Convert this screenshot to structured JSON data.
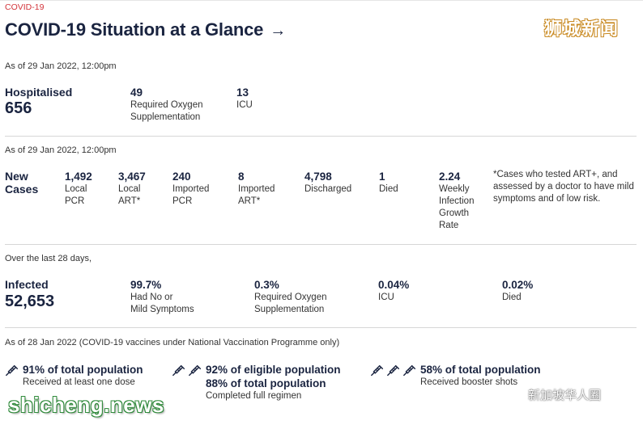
{
  "header": {
    "brand": "COVID-19",
    "title": "COVID-19 Situation at a Glance",
    "arrow": "→"
  },
  "watermarks": {
    "cn": "狮城新闻",
    "en": "shicheng.news",
    "wechat": "新加坡华人圈"
  },
  "hospital": {
    "asof": "As of 29 Jan 2022, 12:00pm",
    "label": "Hospitalised",
    "total": "656",
    "stats": [
      {
        "value": "49",
        "desc1": "Required Oxygen",
        "desc2": "Supplementation"
      },
      {
        "value": "13",
        "desc1": "ICU",
        "desc2": ""
      }
    ]
  },
  "cases": {
    "asof": "As of 29 Jan 2022, 12:00pm",
    "label1": "New",
    "label2": "Cases",
    "stats": [
      {
        "value": "1,492",
        "desc": [
          "Local",
          "PCR"
        ]
      },
      {
        "value": "3,467",
        "desc": [
          "Local",
          "ART*"
        ]
      },
      {
        "value": "240",
        "desc": [
          "Imported",
          "PCR"
        ]
      },
      {
        "value": "8",
        "desc": [
          "Imported",
          "ART*"
        ]
      },
      {
        "value": "4,798",
        "desc": [
          "Discharged"
        ]
      },
      {
        "value": "1",
        "desc": [
          "Died"
        ]
      },
      {
        "value": "2.24",
        "desc": [
          "Weekly",
          "Infection",
          "Growth",
          "Rate"
        ]
      }
    ],
    "note": "*Cases who tested ART+, and assessed by a doctor to have mild symptoms and of low risk."
  },
  "infected": {
    "asof": "Over the last 28 days,",
    "label": "Infected",
    "total": "52,653",
    "stats": [
      {
        "value": "99.7%",
        "desc": [
          "Had No or",
          "Mild Symptoms"
        ]
      },
      {
        "value": "0.3%",
        "desc": [
          "Required Oxygen",
          "Supplementation"
        ]
      },
      {
        "value": "0.04%",
        "desc": [
          "ICU"
        ]
      },
      {
        "value": "0.02%",
        "desc": [
          "Died"
        ]
      }
    ]
  },
  "vaccination": {
    "asof": "As of 28 Jan 2022 (COVID-19 vaccines under National Vaccination Programme only)",
    "items": [
      {
        "line1": "91% of total population",
        "line2": "",
        "desc": "Received at least one dose",
        "icons": 1
      },
      {
        "line1": "92% of eligible population",
        "line2": "88% of total population",
        "desc": "Completed full regimen",
        "icons": 2
      },
      {
        "line1": "58% of total population",
        "line2": "",
        "desc": "Received booster shots",
        "icons": 3
      }
    ]
  },
  "colors": {
    "accent": "#d3343a",
    "navy": "#1a2440",
    "divider": "#d6d6d6"
  }
}
